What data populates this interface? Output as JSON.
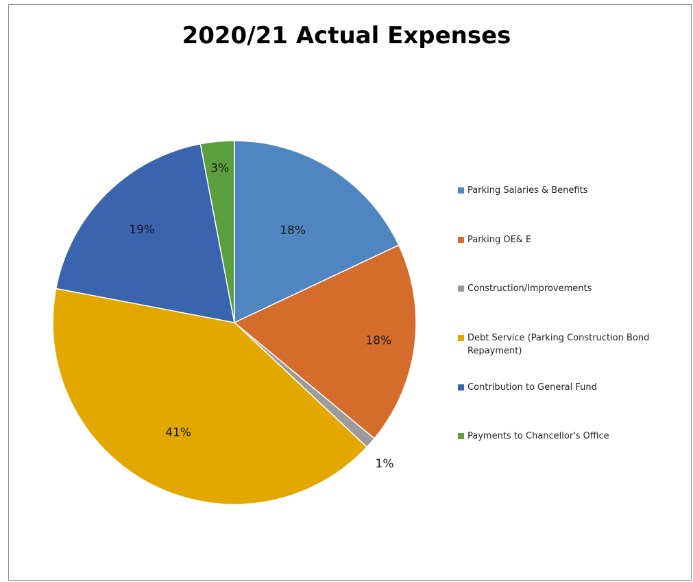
{
  "chart_data": {
    "type": "pie",
    "title": "2020/21 Actual Expenses",
    "legend_position": "right",
    "slices": [
      {
        "name": "Parking Salaries & Benefits",
        "value": 18,
        "label": "18%",
        "color": "#4f86c1"
      },
      {
        "name": "Parking OE& E",
        "value": 18,
        "label": "18%",
        "color": "#d46c2c"
      },
      {
        "name": "Construction/Improvements",
        "value": 1,
        "label": "1%",
        "color": "#9b9b9b"
      },
      {
        "name": "Debt Service (Parking Construction Bond Repayment)",
        "value": 41,
        "label": "41%",
        "color": "#e3a800"
      },
      {
        "name": "Contribution to General Fund",
        "value": 19,
        "label": "19%",
        "color": "#3a64ad"
      },
      {
        "name": "Payments to Chancellor's Office",
        "value": 3,
        "label": "3%",
        "color": "#5b9f3e"
      }
    ]
  }
}
